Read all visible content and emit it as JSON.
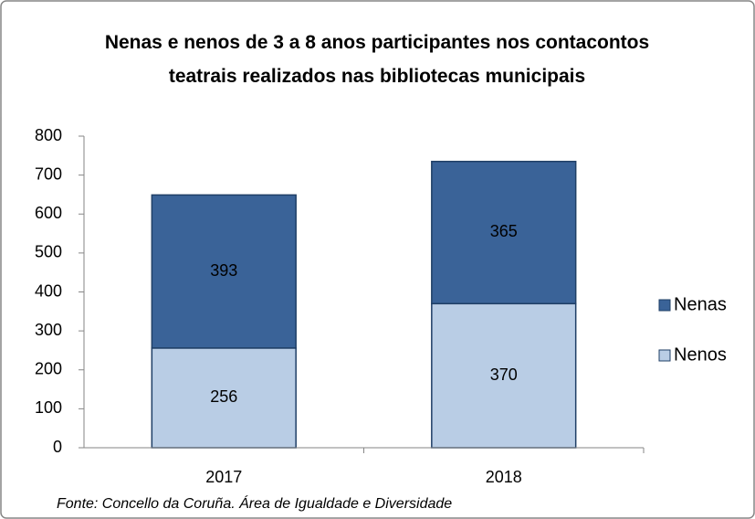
{
  "chart_data": {
    "type": "stacked_bar",
    "title": "Nenas e nenos  de 3 a 8 anos participantes nos contacontos teatrais realizados nas bibliotecas municipais",
    "categories": [
      "2017",
      "2018"
    ],
    "series": [
      {
        "name": "Nenos",
        "color": "#b9cde5",
        "values": [
          256,
          370
        ]
      },
      {
        "name": "Nenas",
        "color": "#3a6398",
        "values": [
          393,
          365
        ]
      }
    ],
    "ylim": [
      0,
      800
    ],
    "yticks": [
      0,
      100,
      200,
      300,
      400,
      500,
      600,
      700,
      800
    ],
    "legend": "right",
    "source": "Fonte: Concello da Coruña. Área de Igualdade e Diversidade"
  }
}
